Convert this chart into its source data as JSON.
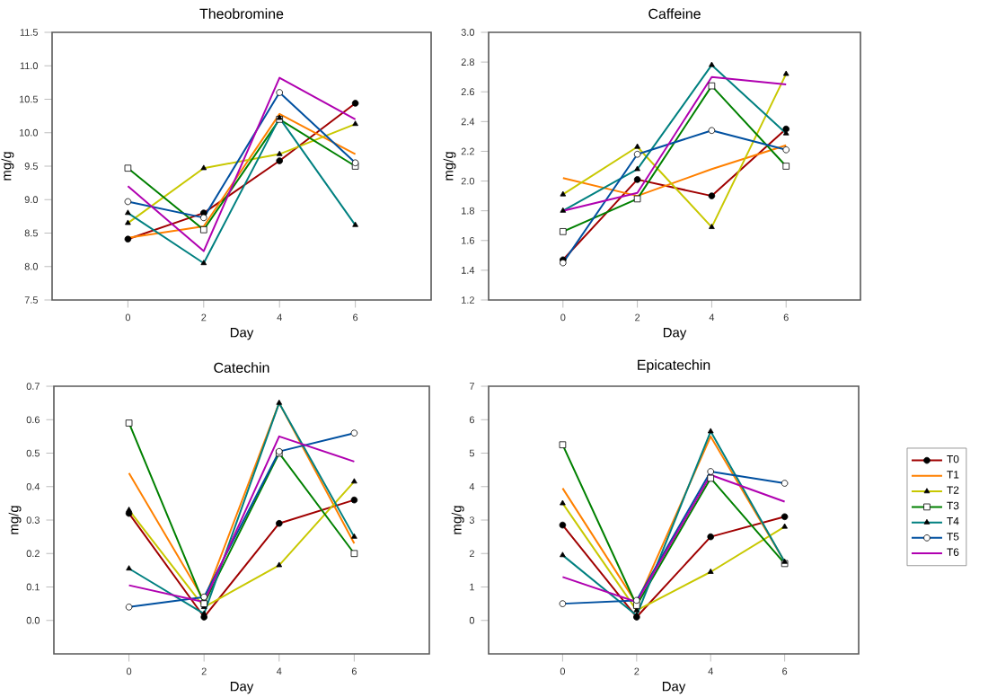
{
  "chart_data": [
    {
      "type": "line",
      "title": "Theobromine",
      "xlabel": "Day",
      "ylabel": "mg/g",
      "x": [
        0,
        2,
        4,
        6
      ],
      "xlim": [
        -2,
        8
      ],
      "xticks": [
        0,
        2,
        4,
        6
      ],
      "ylim": [
        7.5,
        11.5
      ],
      "yticks": [
        {
          "value": 7.5,
          "label": "7.5"
        },
        {
          "value": 8,
          "label": "8.0"
        },
        {
          "value": 8.5,
          "label": "8.5"
        },
        {
          "value": 9,
          "label": "9.0"
        },
        {
          "value": 9.5,
          "label": "9.5"
        },
        {
          "value": 10,
          "label": "10.0"
        },
        {
          "value": 10.5,
          "label": "10.5"
        },
        {
          "value": 11,
          "label": "11.0"
        },
        {
          "value": 11.5,
          "label": "11.5"
        }
      ],
      "grid": false,
      "legend": false,
      "series": [
        {
          "color": "#a00000",
          "marker": "circle",
          "values": [
            8.41,
            8.8,
            9.58,
            10.44
          ]
        },
        {
          "color": "#ff8000",
          "marker": "none",
          "values": [
            8.43,
            8.6,
            10.28,
            9.68
          ]
        },
        {
          "color": "#c8c800",
          "marker": "triangle",
          "values": [
            8.65,
            9.47,
            9.68,
            10.13
          ]
        },
        {
          "color": "#008000",
          "marker": "square",
          "values": [
            9.47,
            8.55,
            10.2,
            9.5
          ]
        },
        {
          "color": "#008080",
          "marker": "triangle",
          "values": [
            8.8,
            8.05,
            10.22,
            8.62
          ]
        },
        {
          "color": "#0050a0",
          "marker": "circle",
          "values": [
            8.97,
            8.73,
            10.6,
            9.55
          ]
        },
        {
          "color": "#b000b0",
          "marker": "none",
          "values": [
            9.2,
            8.23,
            10.82,
            10.2
          ]
        }
      ]
    },
    {
      "type": "line",
      "title": "Caffeine",
      "xlabel": "Day",
      "ylabel": "mg/g",
      "x": [
        0,
        2,
        4,
        6
      ],
      "xlim": [
        -2,
        8
      ],
      "xticks": [
        0,
        2,
        4,
        6
      ],
      "ylim": [
        1.2,
        3.0
      ],
      "yticks": [
        {
          "value": 1.2,
          "label": "1.2"
        },
        {
          "value": 1.4,
          "label": "1.4"
        },
        {
          "value": 1.6,
          "label": "1.6"
        },
        {
          "value": 1.8,
          "label": "1.8"
        },
        {
          "value": 2.0,
          "label": "2.0"
        },
        {
          "value": 2.2,
          "label": "2.2"
        },
        {
          "value": 2.4,
          "label": "2.4"
        },
        {
          "value": 2.6,
          "label": "2.6"
        },
        {
          "value": 2.8,
          "label": "2.8"
        },
        {
          "value": 3.0,
          "label": "3.0"
        }
      ],
      "grid": false,
      "legend": false,
      "series": [
        {
          "color": "#a00000",
          "marker": "circle",
          "values": [
            1.47,
            2.01,
            1.9,
            2.35
          ]
        },
        {
          "color": "#ff8000",
          "marker": "none",
          "values": [
            2.02,
            1.9,
            2.08,
            2.24
          ]
        },
        {
          "color": "#c8c800",
          "marker": "triangle",
          "values": [
            1.91,
            2.23,
            1.69,
            2.72
          ]
        },
        {
          "color": "#008000",
          "marker": "square",
          "values": [
            1.66,
            1.88,
            2.64,
            2.1
          ]
        },
        {
          "color": "#008080",
          "marker": "triangle",
          "values": [
            1.8,
            2.08,
            2.78,
            2.32
          ]
        },
        {
          "color": "#0050a0",
          "marker": "circle",
          "values": [
            1.45,
            2.18,
            2.34,
            2.21
          ]
        },
        {
          "color": "#b000b0",
          "marker": "none",
          "values": [
            1.8,
            1.92,
            2.7,
            2.65
          ]
        }
      ]
    },
    {
      "type": "line",
      "title": "Catechin",
      "xlabel": "Day",
      "ylabel": "mg/g",
      "x": [
        0,
        2,
        4,
        6
      ],
      "xlim": [
        -2,
        8
      ],
      "xticks": [
        0,
        2,
        4,
        6
      ],
      "ylim": [
        -0.1,
        0.7
      ],
      "yticks": [
        {
          "value": 0,
          "label": "0.0"
        },
        {
          "value": 0.1,
          "label": "0.1"
        },
        {
          "value": 0.2,
          "label": "0.2"
        },
        {
          "value": 0.3,
          "label": "0.3"
        },
        {
          "value": 0.4,
          "label": "0.4"
        },
        {
          "value": 0.5,
          "label": "0.5"
        },
        {
          "value": 0.6,
          "label": "0.6"
        },
        {
          "value": 0.7,
          "label": "0.7"
        }
      ],
      "grid": false,
      "legend": false,
      "series": [
        {
          "color": "#a00000",
          "marker": "circle",
          "values": [
            0.32,
            0.01,
            0.29,
            0.36
          ]
        },
        {
          "color": "#ff8000",
          "marker": "none",
          "values": [
            0.44,
            0.06,
            0.65,
            0.23
          ]
        },
        {
          "color": "#c8c800",
          "marker": "triangle",
          "values": [
            0.33,
            0.04,
            0.165,
            0.415
          ]
        },
        {
          "color": "#008000",
          "marker": "square",
          "values": [
            0.59,
            0.05,
            0.5,
            0.2
          ]
        },
        {
          "color": "#008080",
          "marker": "triangle",
          "values": [
            0.155,
            0.02,
            0.65,
            0.25
          ]
        },
        {
          "color": "#0050a0",
          "marker": "circle",
          "values": [
            0.04,
            0.07,
            0.505,
            0.56
          ]
        },
        {
          "color": "#b000b0",
          "marker": "none",
          "values": [
            0.105,
            0.055,
            0.55,
            0.475
          ]
        }
      ]
    },
    {
      "type": "line",
      "title": "Epicatechin",
      "xlabel": "Day",
      "ylabel": "mg/g",
      "x": [
        0,
        2,
        4,
        6
      ],
      "xlim": [
        -2,
        8
      ],
      "xticks": [
        0,
        2,
        4,
        6
      ],
      "ylim": [
        -1,
        7
      ],
      "yticks": [
        0,
        1,
        2,
        3,
        4,
        5,
        6,
        7
      ],
      "grid": false,
      "legend": "right",
      "series": [
        {
          "name": "T0",
          "color": "#a00000",
          "marker": "circle",
          "values": [
            2.85,
            0.1,
            2.5,
            3.1
          ]
        },
        {
          "name": "T1",
          "color": "#ff8000",
          "marker": "none",
          "values": [
            3.95,
            0.5,
            5.5,
            1.75
          ]
        },
        {
          "name": "T2",
          "color": "#c8c800",
          "marker": "triangle",
          "values": [
            3.5,
            0.3,
            1.45,
            2.8
          ]
        },
        {
          "name": "T3",
          "color": "#008000",
          "marker": "square",
          "values": [
            5.25,
            0.45,
            4.25,
            1.7
          ]
        },
        {
          "name": "T4",
          "color": "#008080",
          "marker": "triangle",
          "values": [
            1.95,
            0.15,
            5.65,
            1.75
          ]
        },
        {
          "name": "T5",
          "color": "#0050a0",
          "marker": "circle",
          "values": [
            0.5,
            0.6,
            4.45,
            4.1
          ]
        },
        {
          "name": "T6",
          "color": "#b000b0",
          "marker": "none",
          "values": [
            1.3,
            0.55,
            4.35,
            3.55
          ]
        }
      ]
    }
  ]
}
